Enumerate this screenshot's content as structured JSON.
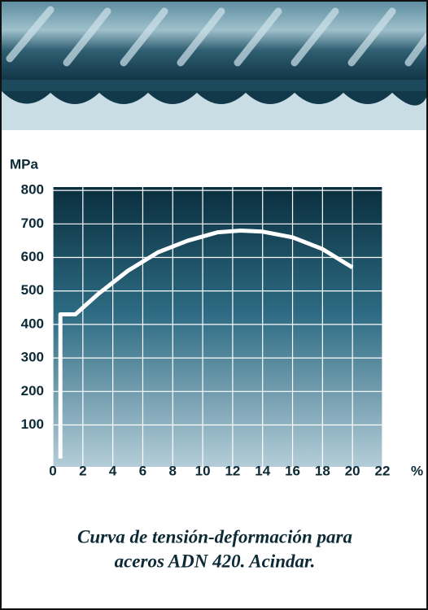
{
  "chart_data": {
    "type": "line",
    "y_label": "MPa",
    "x_label": "%",
    "caption": [
      "Curva de tensión-deformación para",
      "aceros ADN 420. Acindar."
    ],
    "x": [
      0.5,
      0.5,
      1.5,
      3,
      5,
      7,
      9,
      11,
      12.5,
      14,
      16,
      18,
      20
    ],
    "series": [
      {
        "color": "#ffffff",
        "values": [
          0,
          430,
          430,
          490,
          560,
          615,
          650,
          675,
          680,
          677,
          660,
          625,
          570
        ]
      }
    ],
    "xlim": [
      0,
      22
    ],
    "xticks": [
      0,
      2,
      4,
      6,
      8,
      10,
      12,
      14,
      16,
      18,
      20,
      22
    ],
    "ylim": [
      -25,
      810
    ],
    "yticks": [
      100,
      200,
      300,
      400,
      500,
      600,
      700,
      800
    ],
    "grid": true
  }
}
